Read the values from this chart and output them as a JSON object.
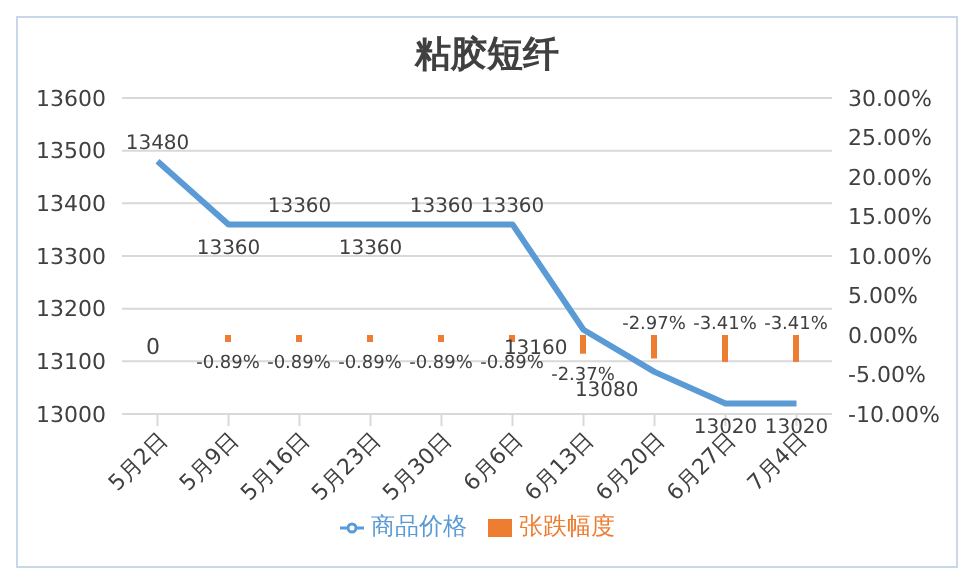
{
  "chart_data": {
    "type": "bar",
    "title": "粘胶短纤",
    "categories": [
      "5月2日",
      "5月9日",
      "5月16日",
      "5月23日",
      "5月30日",
      "6月6日",
      "6月13日",
      "6月20日",
      "6月27日",
      "7月4日"
    ],
    "series": [
      {
        "name": "张跌幅度",
        "axis": "y2",
        "color": "#ed7d31",
        "values": [
          null,
          -0.89,
          -0.89,
          -0.89,
          -0.89,
          -0.89,
          -2.37,
          -2.97,
          -3.41,
          -3.41
        ],
        "value_labels": [
          null,
          "-0.89%",
          "-0.89%",
          "-0.89%",
          "-0.89%",
          "-0.89%",
          "-2.37%",
          "-2.97%",
          "-3.41%",
          "-3.41%"
        ]
      },
      {
        "name": "商品价格",
        "type": "line",
        "color": "#5b9bd5",
        "values": [
          13480,
          13360,
          13360,
          13360,
          13360,
          13360,
          13160,
          13080,
          13020,
          13020
        ],
        "value_labels": [
          "13480",
          "13360",
          "13360",
          "13360",
          "13360",
          "13360",
          "13160",
          "13080",
          "13020",
          "13020"
        ]
      }
    ],
    "ylim": [
      13000,
      13600
    ],
    "yticks": [
      13000,
      13100,
      13200,
      13300,
      13400,
      13500,
      13600
    ],
    "y2lim": [
      -10,
      30
    ],
    "y2ticks": [
      {
        "value": -10,
        "label": "-10.00%"
      },
      {
        "value": -5,
        "label": "-5.00%"
      },
      {
        "value": 0,
        "label": "0.00%"
      },
      {
        "value": 5,
        "label": "5.00%"
      },
      {
        "value": 10,
        "label": "10.00%"
      },
      {
        "value": 15,
        "label": "15.00%"
      },
      {
        "value": 20,
        "label": "20.00%"
      },
      {
        "value": 25,
        "label": "25.00%"
      },
      {
        "value": 30,
        "label": "30.00%"
      }
    ],
    "grid": "y",
    "legend": "bottom",
    "marker": "none",
    "annotations": [
      "0"
    ]
  }
}
